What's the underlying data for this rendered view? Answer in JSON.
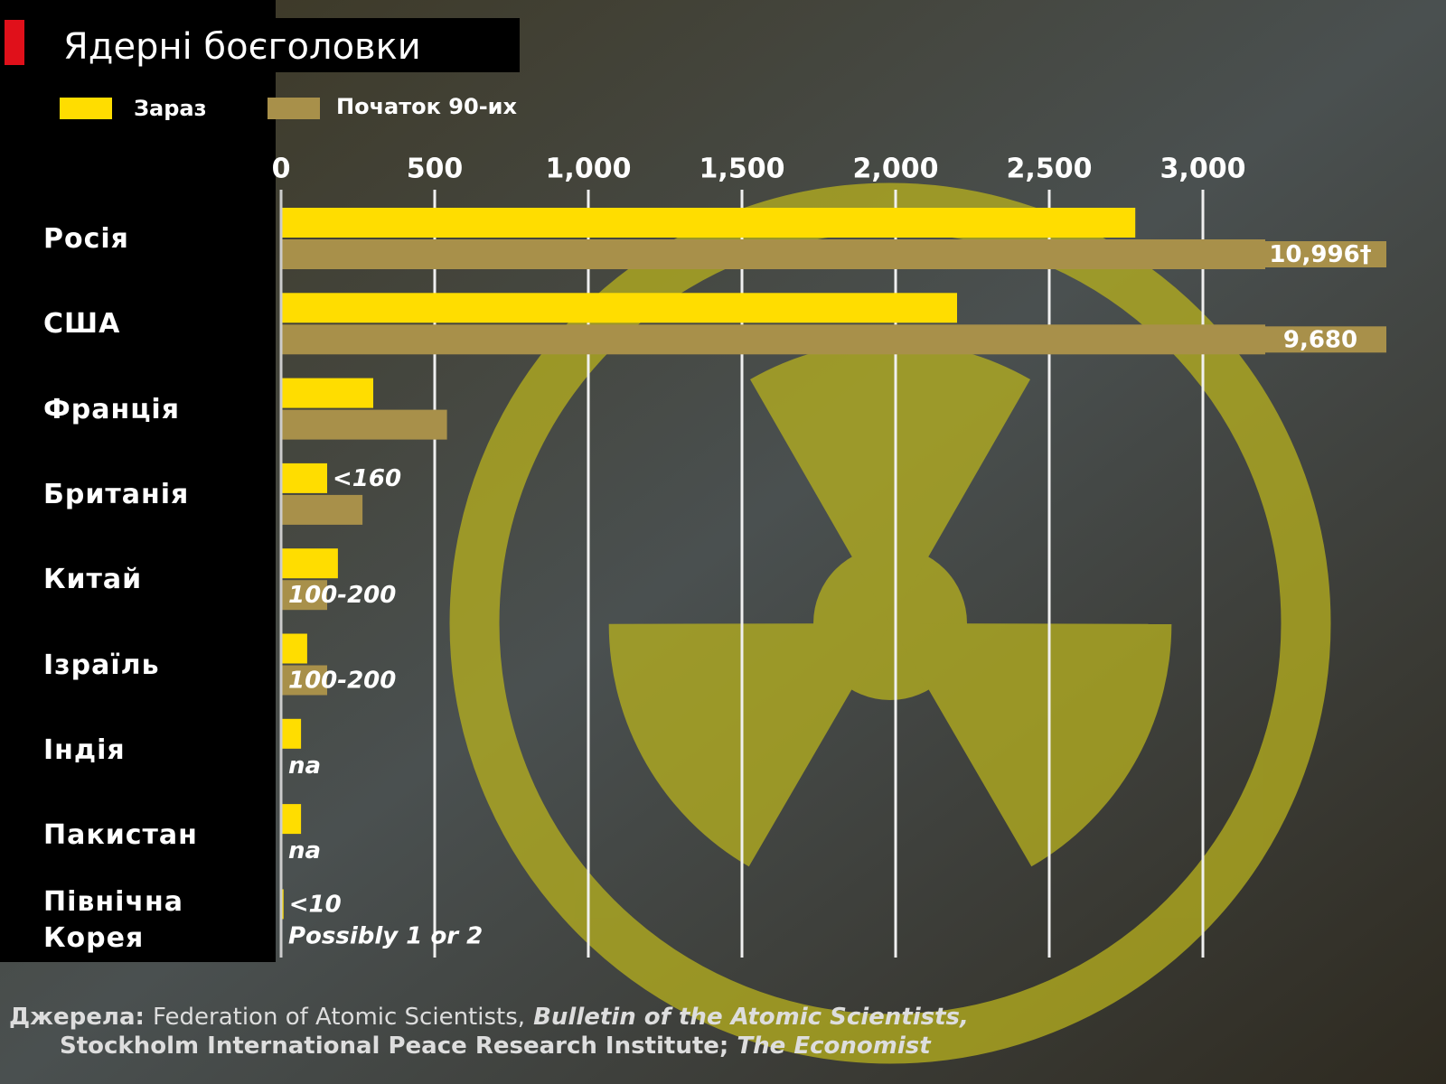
{
  "chart_data": {
    "type": "bar",
    "orientation": "horizontal",
    "title": "Ядерні боєголовки",
    "categories": [
      "Росія",
      "США",
      "Франція",
      "Британія",
      "Китай",
      "Ізраїль",
      "Індія",
      "Пакистан",
      "Північна Корея"
    ],
    "series": [
      {
        "name": "Зараз",
        "color": "#ffdd00",
        "values": [
          2780,
          2200,
          300,
          150,
          185,
          85,
          65,
          65,
          8
        ],
        "value_labels": [
          null,
          null,
          null,
          "<160",
          null,
          null,
          null,
          null,
          "<10"
        ]
      },
      {
        "name": "Початок 90-их",
        "color": "#a8904a",
        "values": [
          10996,
          9680,
          540,
          265,
          150,
          150,
          null,
          null,
          2
        ],
        "value_labels": [
          "10,996†",
          "9,680",
          null,
          null,
          "100-200",
          "100-200",
          "na",
          "na",
          "Possibly 1 or 2"
        ]
      }
    ],
    "xlim": [
      0,
      3200
    ],
    "xticks": [
      0,
      500,
      {
        "value": 1000,
        "label": "1,000"
      },
      {
        "value": 1500,
        "label": "1,500"
      },
      {
        "value": 2000,
        "label": "2,000"
      },
      {
        "value": 2500,
        "label": "2,500"
      },
      {
        "value": 3000,
        "label": "3,000"
      }
    ],
    "grid": true,
    "source": {
      "label": "Джерела:",
      "parts": [
        "Federation of Atomic Scientists,",
        "Bulletin of the Atomic Scientists,",
        "Stockholm International Peace Research Institute;",
        "The Economist"
      ]
    }
  }
}
